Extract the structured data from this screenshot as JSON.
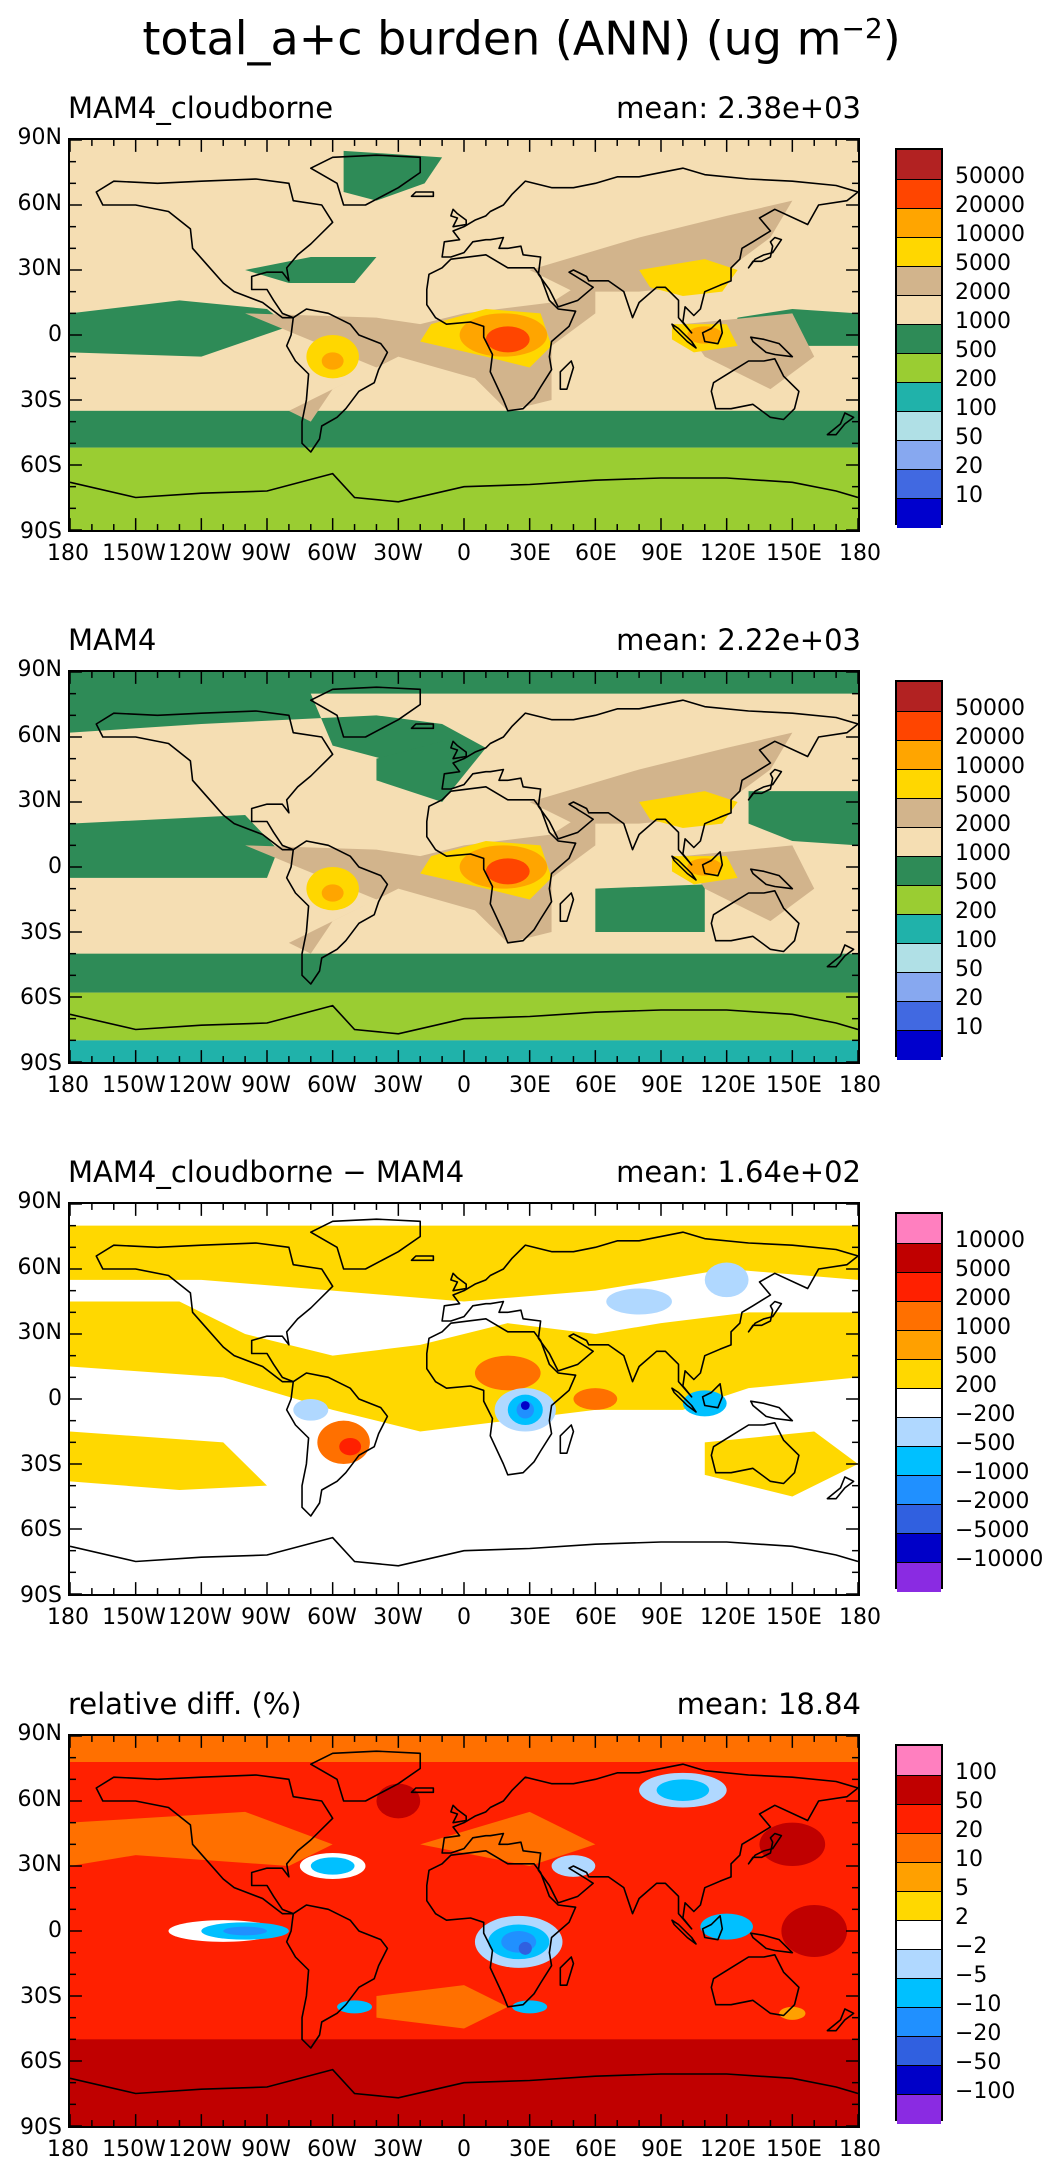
{
  "page": {
    "title": "total_a+c burden (ANN) (ug m",
    "title_sup": "−2",
    "title_close": ")"
  },
  "axes": {
    "lat_labels": [
      "90N",
      "60N",
      "30N",
      "0",
      "30S",
      "60S",
      "90S"
    ],
    "lon_labels": [
      "180",
      "150W",
      "120W",
      "90W",
      "60W",
      "30W",
      "0",
      "30E",
      "60E",
      "90E",
      "120E",
      "150E",
      "180"
    ]
  },
  "panels": [
    {
      "name": "MAM4_cloudborne",
      "mean_text": "mean: 2.38e+03",
      "kind": "abs",
      "colorbar": {
        "colors": [
          "#b22222",
          "#ff4500",
          "#ffa500",
          "#ffd700",
          "#d2b48c",
          "#f5deb3",
          "#2e8b57",
          "#9acd32",
          "#20b2aa",
          "#b0e0e6",
          "#87a8f0",
          "#4169e1",
          "#0000cd"
        ],
        "labels": [
          "50000",
          "20000",
          "10000",
          "5000",
          "2000",
          "1000",
          "500",
          "200",
          "100",
          "50",
          "20",
          "10"
        ]
      }
    },
    {
      "name": "MAM4",
      "mean_text": "mean: 2.22e+03",
      "kind": "abs",
      "colorbar": {
        "colors": [
          "#b22222",
          "#ff4500",
          "#ffa500",
          "#ffd700",
          "#d2b48c",
          "#f5deb3",
          "#2e8b57",
          "#9acd32",
          "#20b2aa",
          "#b0e0e6",
          "#87a8f0",
          "#4169e1",
          "#0000cd"
        ],
        "labels": [
          "50000",
          "20000",
          "10000",
          "5000",
          "2000",
          "1000",
          "500",
          "200",
          "100",
          "50",
          "20",
          "10"
        ]
      }
    },
    {
      "name": "MAM4_cloudborne − MAM4",
      "mean_text": "mean: 1.64e+02",
      "kind": "diff",
      "colorbar": {
        "colors": [
          "#ff7fbf",
          "#c00000",
          "#ff2000",
          "#ff7000",
          "#ffa000",
          "#ffd800",
          "#ffffff",
          "#b0d8ff",
          "#00c0ff",
          "#2090ff",
          "#3060e0",
          "#0000c8",
          "#8a2be2"
        ],
        "labels": [
          "10000",
          "5000",
          "2000",
          "1000",
          "500",
          "200",
          "−200",
          "−500",
          "−1000",
          "−2000",
          "−5000",
          "−10000"
        ]
      }
    },
    {
      "name": "relative diff. (%)",
      "mean_text": "mean: 18.84",
      "kind": "rel",
      "colorbar": {
        "colors": [
          "#ff7fbf",
          "#c00000",
          "#ff2000",
          "#ff7000",
          "#ffa000",
          "#ffd800",
          "#ffffff",
          "#b0d8ff",
          "#00c0ff",
          "#2090ff",
          "#3060e0",
          "#0000c8",
          "#8a2be2"
        ],
        "labels": [
          "100",
          "50",
          "20",
          "10",
          "5",
          "2",
          "−2",
          "−5",
          "−10",
          "−20",
          "−50",
          "−100"
        ]
      }
    }
  ]
}
